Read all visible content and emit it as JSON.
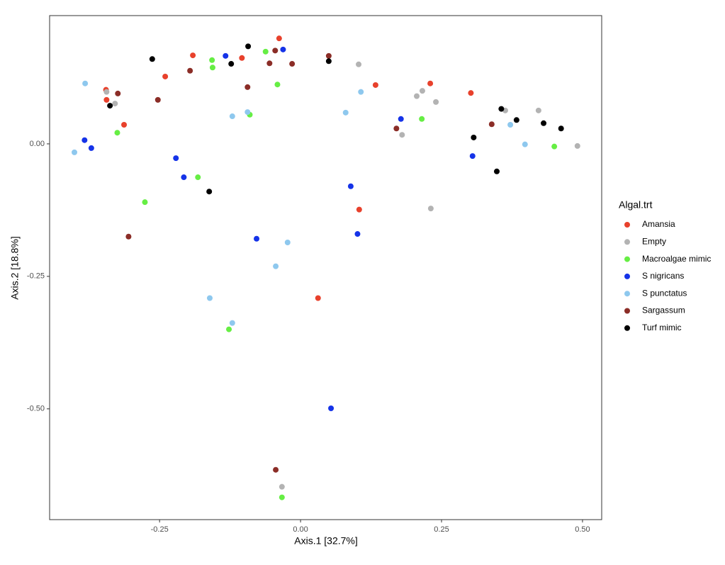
{
  "chart_data": {
    "type": "scatter",
    "x_label": "Axis.1   [32.7%]",
    "y_label": "Axis.2   [18.8%]",
    "legend_title": "Algal.trt",
    "legend": "right",
    "grid": false,
    "xlim": [
      -0.445,
      0.534
    ],
    "ylim": [
      -0.709,
      0.242
    ],
    "xticks": [
      -0.25,
      {
        "value": 0,
        "label": "0.00"
      },
      0.25,
      {
        "value": 0.5,
        "label": "0.50"
      }
    ],
    "yticks": [
      {
        "value": -0.5,
        "label": "-0.50"
      },
      -0.25,
      {
        "value": 0,
        "label": "0.00"
      }
    ],
    "series": [
      {
        "name": "Amansia",
        "color": "#e8412c",
        "x": [
          -0.038,
          -0.191,
          -0.104,
          -0.24,
          -0.345,
          -0.344,
          -0.313,
          0.133,
          0.23,
          0.302,
          0.104,
          0.031
        ],
        "values": [
          0.199,
          0.167,
          0.162,
          0.127,
          0.102,
          0.083,
          0.036,
          0.111,
          0.114,
          0.096,
          -0.124,
          -0.291
        ]
      },
      {
        "name": "Empty",
        "color": "#b3b3b3",
        "x": [
          0.103,
          -0.344,
          -0.329,
          0.206,
          0.216,
          0.24,
          0.18,
          0.231,
          0.363,
          0.422,
          0.491,
          -0.033
        ],
        "values": [
          0.15,
          0.098,
          0.076,
          0.09,
          0.1,
          0.079,
          0.017,
          -0.122,
          0.063,
          0.063,
          -0.004,
          -0.647
        ]
      },
      {
        "name": "Macroalgae mimic",
        "color": "#66ee44",
        "x": [
          -0.062,
          -0.157,
          -0.156,
          -0.041,
          -0.09,
          -0.325,
          0.215,
          -0.182,
          -0.276,
          -0.127,
          -0.033,
          0.45
        ],
        "values": [
          0.174,
          0.158,
          0.144,
          0.112,
          0.055,
          0.021,
          0.047,
          -0.063,
          -0.11,
          -0.35,
          -0.667,
          -0.005
        ]
      },
      {
        "name": "S nigricans",
        "color": "#1533e8",
        "x": [
          -0.133,
          -0.031,
          -0.383,
          -0.371,
          -0.221,
          -0.207,
          0.178,
          0.305,
          0.089,
          0.101,
          -0.078,
          0.054
        ],
        "values": [
          0.166,
          0.178,
          0.007,
          -0.008,
          -0.027,
          -0.063,
          0.047,
          -0.023,
          -0.08,
          -0.17,
          -0.179,
          -0.499
        ]
      },
      {
        "name": "S punctatus",
        "color": "#8ec8ee",
        "x": [
          -0.382,
          -0.401,
          -0.121,
          -0.094,
          0.107,
          0.08,
          0.372,
          0.398,
          -0.023,
          -0.044,
          -0.161,
          -0.121
        ],
        "values": [
          0.114,
          -0.016,
          0.052,
          0.06,
          0.098,
          0.059,
          0.036,
          -0.001,
          -0.186,
          -0.231,
          -0.291,
          -0.338
        ]
      },
      {
        "name": "Sargassum",
        "color": "#8b2d27",
        "x": [
          -0.045,
          -0.055,
          -0.015,
          0.05,
          -0.196,
          -0.094,
          -0.324,
          -0.253,
          0.17,
          0.339,
          -0.305,
          -0.044
        ],
        "values": [
          0.176,
          0.152,
          0.151,
          0.166,
          0.138,
          0.107,
          0.095,
          0.083,
          0.029,
          0.037,
          -0.175,
          -0.615
        ]
      },
      {
        "name": "Turf mimic",
        "color": "#000000",
        "x": [
          -0.263,
          -0.093,
          -0.123,
          0.05,
          -0.338,
          0.356,
          0.383,
          0.431,
          0.462,
          0.307,
          0.348,
          -0.162
        ],
        "values": [
          0.16,
          0.184,
          0.151,
          0.156,
          0.072,
          0.066,
          0.045,
          0.039,
          0.029,
          0.012,
          -0.052,
          -0.09
        ]
      }
    ]
  }
}
